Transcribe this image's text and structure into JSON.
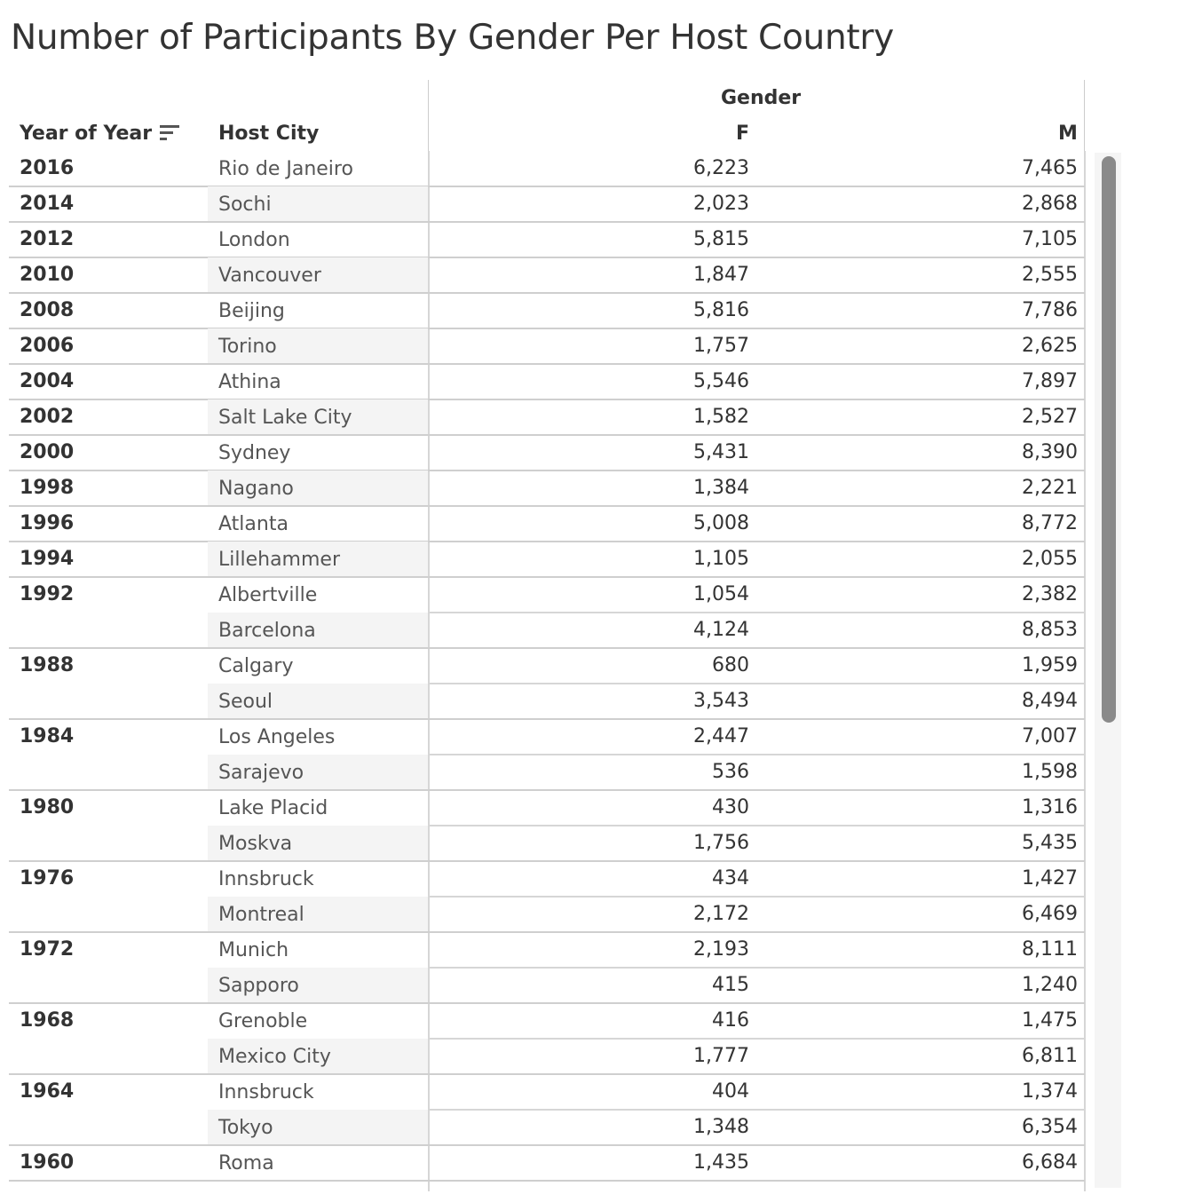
{
  "title": "Number of Participants By Gender Per Host Country",
  "headers": {
    "year": "Year of Year",
    "city": "Host City",
    "gender": "Gender",
    "f": "F",
    "m": "M"
  },
  "icons": {
    "sort": "sort-descending-icon"
  },
  "chart_data": {
    "type": "table",
    "title": "Number of Participants By Gender Per Host Country",
    "columns": [
      "Year of Year",
      "Host City",
      "F",
      "M"
    ],
    "column_group": "Gender",
    "rows": [
      {
        "year": "2016",
        "city": "Rio de Janeiro",
        "f": "6,223",
        "m": "7,465"
      },
      {
        "year": "2014",
        "city": "Sochi",
        "f": "2,023",
        "m": "2,868"
      },
      {
        "year": "2012",
        "city": "London",
        "f": "5,815",
        "m": "7,105"
      },
      {
        "year": "2010",
        "city": "Vancouver",
        "f": "1,847",
        "m": "2,555"
      },
      {
        "year": "2008",
        "city": "Beijing",
        "f": "5,816",
        "m": "7,786"
      },
      {
        "year": "2006",
        "city": "Torino",
        "f": "1,757",
        "m": "2,625"
      },
      {
        "year": "2004",
        "city": "Athina",
        "f": "5,546",
        "m": "7,897"
      },
      {
        "year": "2002",
        "city": "Salt Lake City",
        "f": "1,582",
        "m": "2,527"
      },
      {
        "year": "2000",
        "city": "Sydney",
        "f": "5,431",
        "m": "8,390"
      },
      {
        "year": "1998",
        "city": "Nagano",
        "f": "1,384",
        "m": "2,221"
      },
      {
        "year": "1996",
        "city": "Atlanta",
        "f": "5,008",
        "m": "8,772"
      },
      {
        "year": "1994",
        "city": "Lillehammer",
        "f": "1,105",
        "m": "2,055"
      },
      {
        "year": "1992",
        "city": "Albertville",
        "f": "1,054",
        "m": "2,382"
      },
      {
        "year": "",
        "city": "Barcelona",
        "f": "4,124",
        "m": "8,853"
      },
      {
        "year": "1988",
        "city": "Calgary",
        "f": "680",
        "m": "1,959"
      },
      {
        "year": "",
        "city": "Seoul",
        "f": "3,543",
        "m": "8,494"
      },
      {
        "year": "1984",
        "city": "Los Angeles",
        "f": "2,447",
        "m": "7,007"
      },
      {
        "year": "",
        "city": "Sarajevo",
        "f": "536",
        "m": "1,598"
      },
      {
        "year": "1980",
        "city": "Lake Placid",
        "f": "430",
        "m": "1,316"
      },
      {
        "year": "",
        "city": "Moskva",
        "f": "1,756",
        "m": "5,435"
      },
      {
        "year": "1976",
        "city": "Innsbruck",
        "f": "434",
        "m": "1,427"
      },
      {
        "year": "",
        "city": "Montreal",
        "f": "2,172",
        "m": "6,469"
      },
      {
        "year": "1972",
        "city": "Munich",
        "f": "2,193",
        "m": "8,111"
      },
      {
        "year": "",
        "city": "Sapporo",
        "f": "415",
        "m": "1,240"
      },
      {
        "year": "1968",
        "city": "Grenoble",
        "f": "416",
        "m": "1,475"
      },
      {
        "year": "",
        "city": "Mexico City",
        "f": "1,777",
        "m": "6,811"
      },
      {
        "year": "1964",
        "city": "Innsbruck",
        "f": "404",
        "m": "1,374"
      },
      {
        "year": "",
        "city": "Tokyo",
        "f": "1,348",
        "m": "6,354"
      },
      {
        "year": "1960",
        "city": "Roma",
        "f": "1,435",
        "m": "6,684"
      }
    ]
  }
}
